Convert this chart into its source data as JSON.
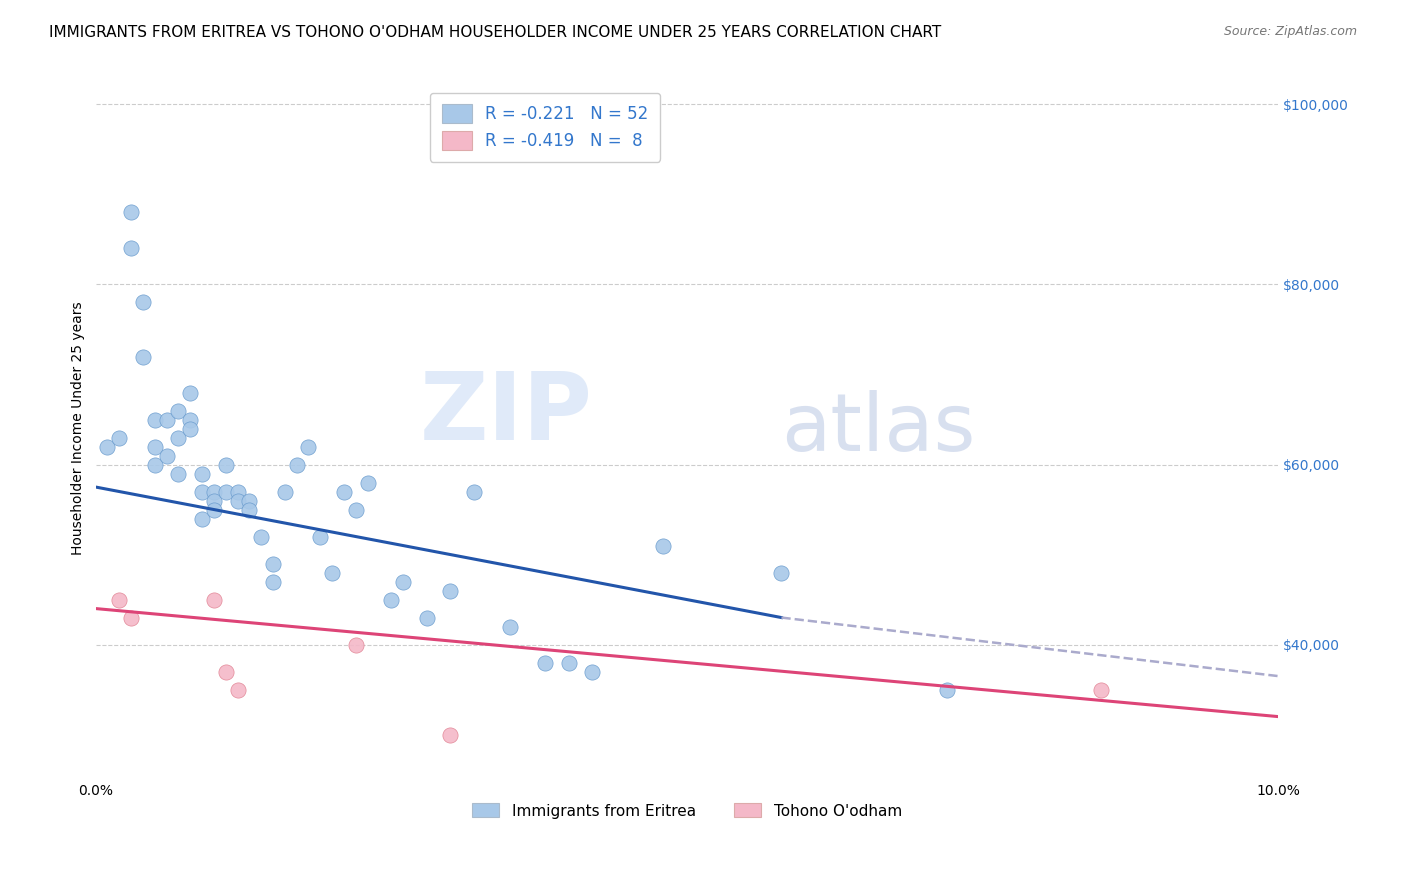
{
  "title": "IMMIGRANTS FROM ERITREA VS TOHONO O'ODHAM HOUSEHOLDER INCOME UNDER 25 YEARS CORRELATION CHART",
  "source": "Source: ZipAtlas.com",
  "ylabel": "Householder Income Under 25 years",
  "xmin": 0.0,
  "xmax": 0.1,
  "ymin": 25000,
  "ymax": 103000,
  "yticks": [
    40000,
    60000,
    80000,
    100000
  ],
  "right_ytick_labels": [
    "$40,000",
    "$60,000",
    "$80,000",
    "$100,000"
  ],
  "xticks": [
    0.0,
    0.02,
    0.04,
    0.06,
    0.08,
    0.1
  ],
  "xtick_labels": [
    "0.0%",
    "",
    "",
    "",
    "",
    "10.0%"
  ],
  "blue_scatter_x": [
    0.001,
    0.002,
    0.003,
    0.003,
    0.004,
    0.004,
    0.005,
    0.005,
    0.005,
    0.006,
    0.006,
    0.007,
    0.007,
    0.007,
    0.008,
    0.008,
    0.008,
    0.009,
    0.009,
    0.009,
    0.01,
    0.01,
    0.01,
    0.011,
    0.011,
    0.012,
    0.012,
    0.013,
    0.013,
    0.014,
    0.015,
    0.015,
    0.016,
    0.017,
    0.018,
    0.019,
    0.02,
    0.021,
    0.022,
    0.023,
    0.025,
    0.026,
    0.028,
    0.03,
    0.032,
    0.035,
    0.038,
    0.04,
    0.042,
    0.048,
    0.058,
    0.072
  ],
  "blue_scatter_y": [
    62000,
    63000,
    88000,
    84000,
    78000,
    72000,
    65000,
    62000,
    60000,
    65000,
    61000,
    66000,
    63000,
    59000,
    68000,
    65000,
    64000,
    57000,
    59000,
    54000,
    57000,
    56000,
    55000,
    60000,
    57000,
    57000,
    56000,
    56000,
    55000,
    52000,
    47000,
    49000,
    57000,
    60000,
    62000,
    52000,
    48000,
    57000,
    55000,
    58000,
    45000,
    47000,
    43000,
    46000,
    57000,
    42000,
    38000,
    38000,
    37000,
    51000,
    48000,
    35000
  ],
  "pink_scatter_x": [
    0.002,
    0.003,
    0.01,
    0.011,
    0.012,
    0.022,
    0.03,
    0.085
  ],
  "pink_scatter_y": [
    45000,
    43000,
    45000,
    37000,
    35000,
    40000,
    30000,
    35000
  ],
  "blue_line_x0": 0.0,
  "blue_line_x1": 0.058,
  "blue_line_y0": 57500,
  "blue_line_y1": 43000,
  "pink_line_x0": 0.0,
  "pink_line_x1": 0.1,
  "pink_line_y0": 44000,
  "pink_line_y1": 32000,
  "dash_line_x0": 0.058,
  "dash_line_x1": 0.1,
  "dash_line_y0": 43000,
  "dash_line_y1": 36500,
  "blue_color": "#a8c8e8",
  "pink_color": "#f4b8c8",
  "blue_scatter_edge": "#6699cc",
  "pink_scatter_edge": "#e08090",
  "blue_line_color": "#2255aa",
  "pink_line_color": "#dd4477",
  "dash_line_color": "#aaaacc",
  "legend_r_blue": "R = -0.221",
  "legend_n_blue": "N = 52",
  "legend_r_pink": "R = -0.419",
  "legend_n_pink": "N =  8",
  "watermark_zip": "ZIP",
  "watermark_atlas": "atlas",
  "background_color": "#ffffff",
  "grid_color": "#cccccc",
  "title_fontsize": 11,
  "axis_label_fontsize": 10,
  "tick_fontsize": 10,
  "right_tick_color": "#3377cc"
}
